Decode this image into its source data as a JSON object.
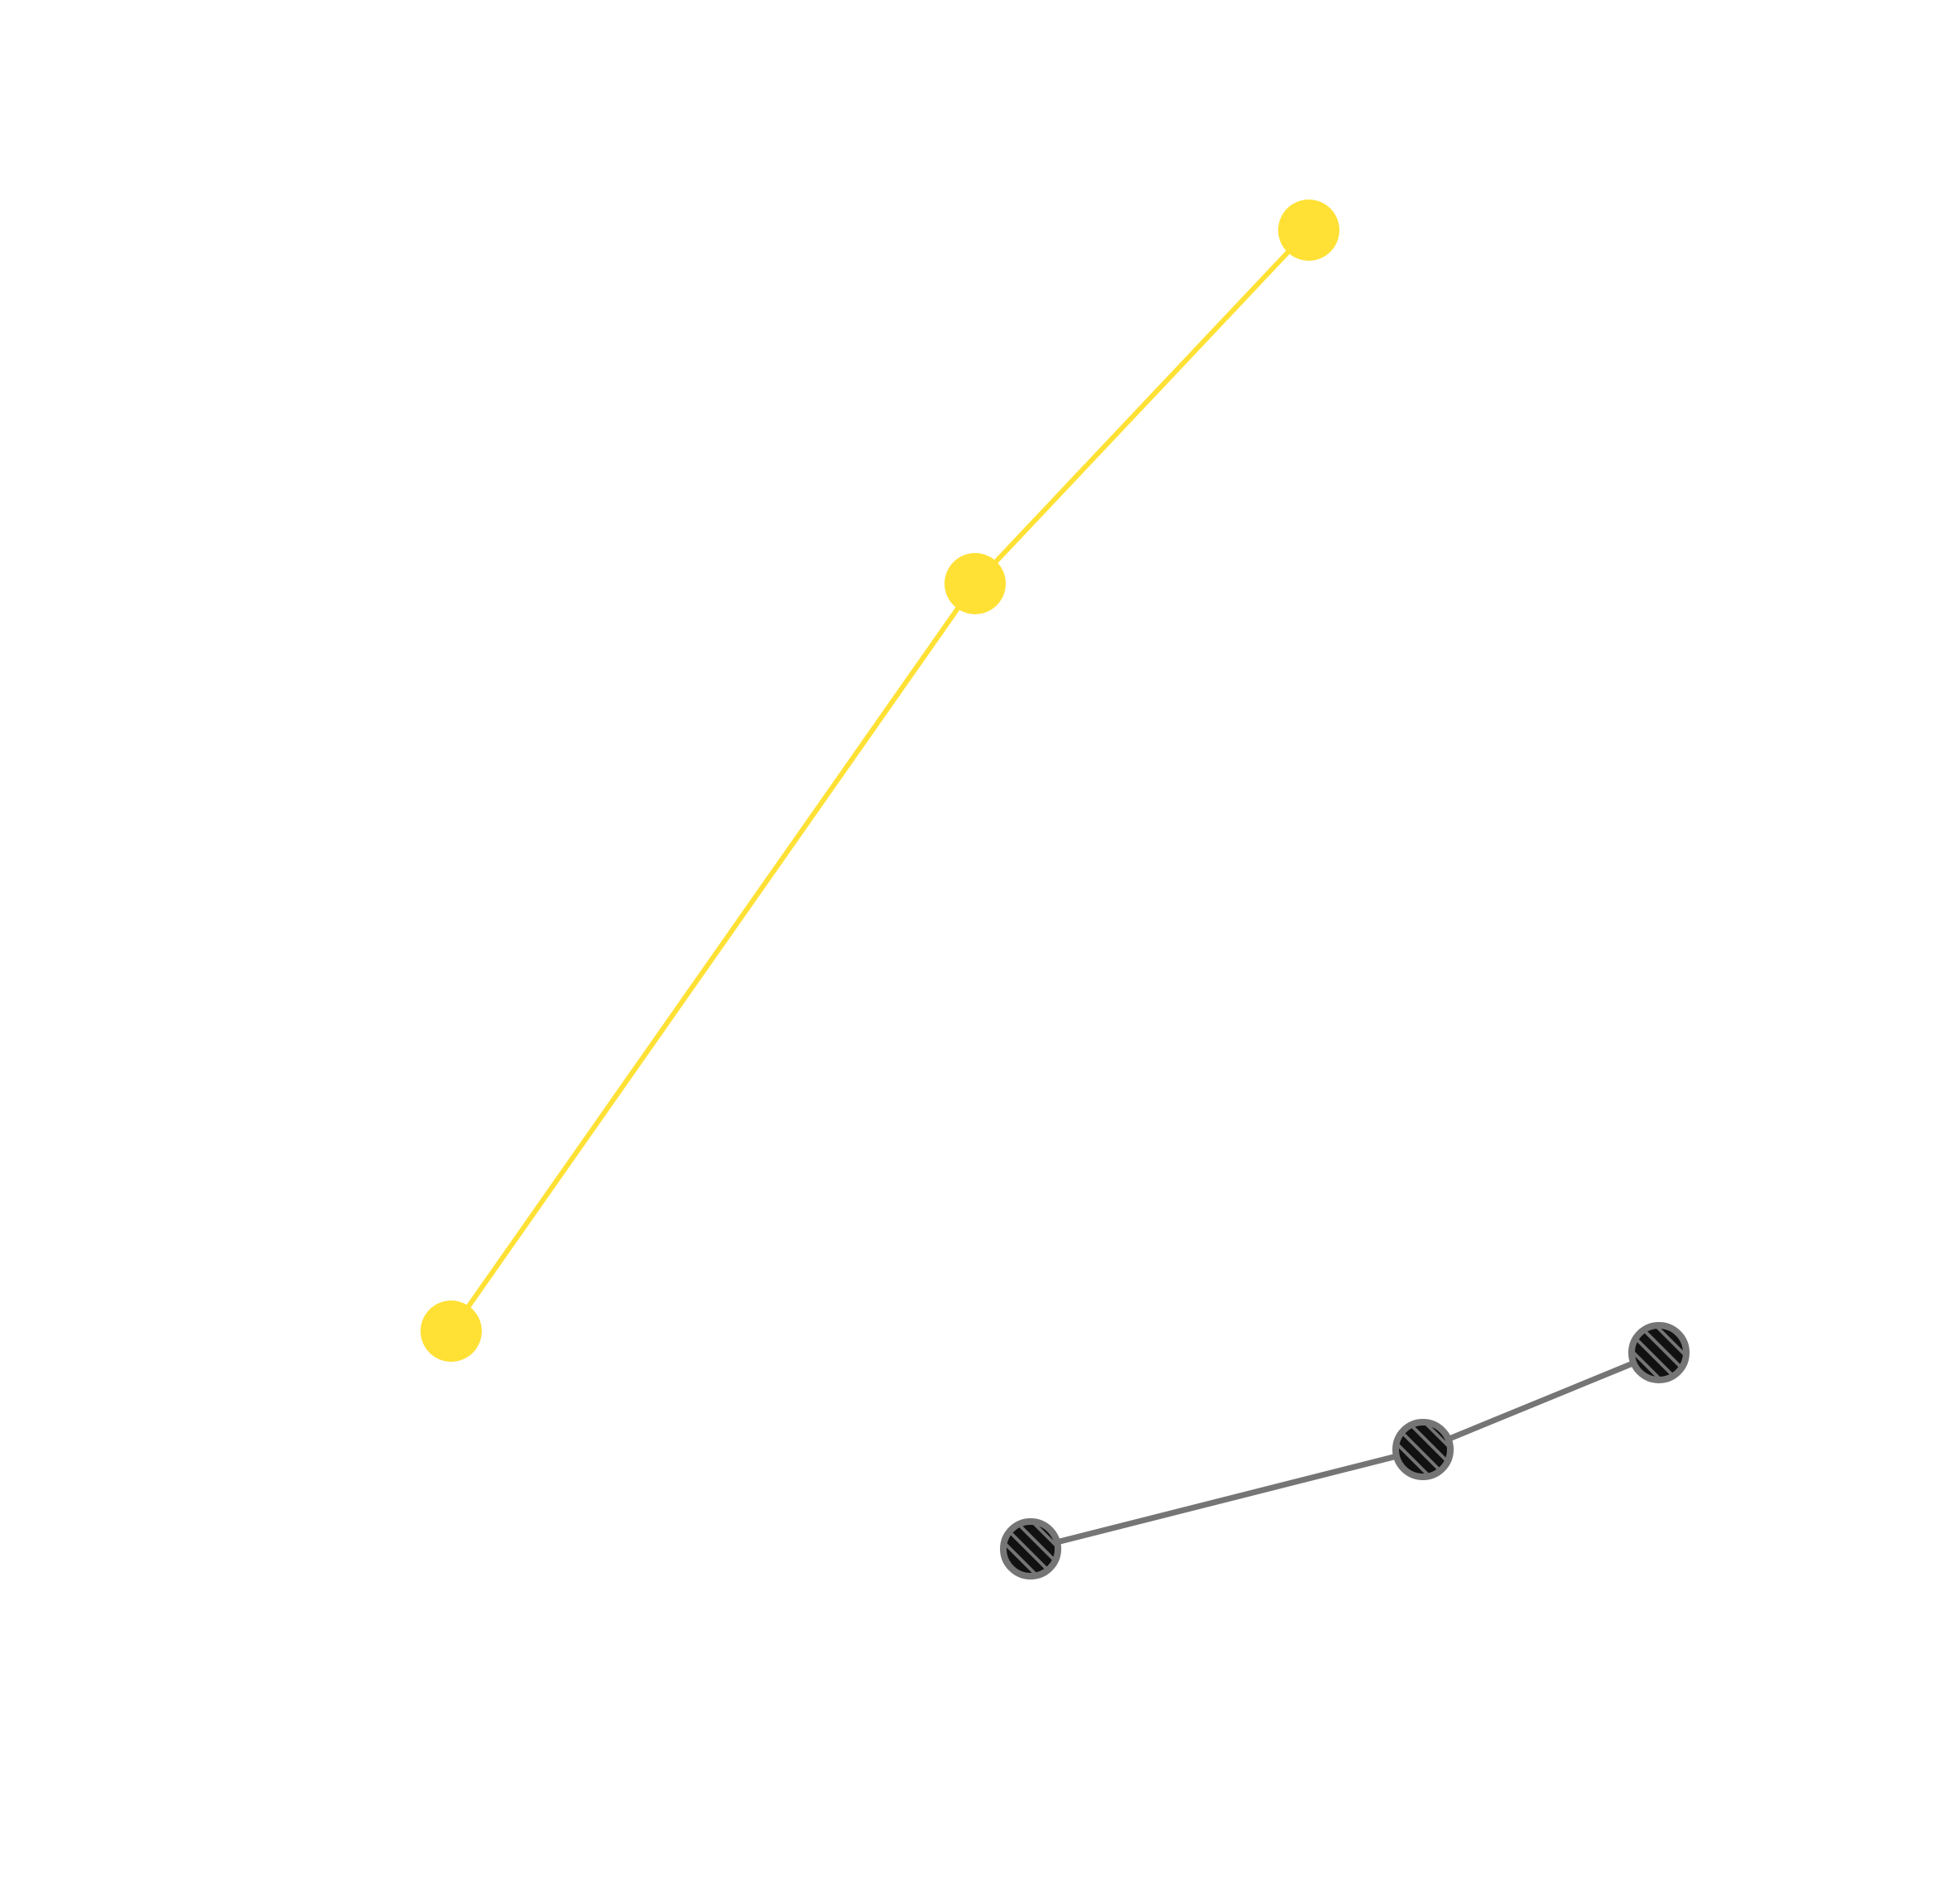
{
  "chart_data": {
    "type": "line",
    "title": "",
    "xlabel": "",
    "ylabel": "",
    "xlim": [
      0,
      23.52
    ],
    "ylim": [
      0,
      23
    ],
    "grid": false,
    "axes_visible": false,
    "legend": "none",
    "series": [
      {
        "color": "#FFE135",
        "marker": "filled-circle",
        "points": [
          {
            "x": 5.45,
            "y": 6.92
          },
          {
            "x": 11.78,
            "y": 15.95
          },
          {
            "x": 15.81,
            "y": 20.22
          }
        ]
      },
      {
        "color": "#757575",
        "marker": "hatched-circle",
        "marker_fill": "#111111",
        "points": [
          {
            "x": 12.45,
            "y": 4.29
          },
          {
            "x": 17.19,
            "y": 5.49
          },
          {
            "x": 20.04,
            "y": 6.66
          }
        ]
      }
    ]
  }
}
